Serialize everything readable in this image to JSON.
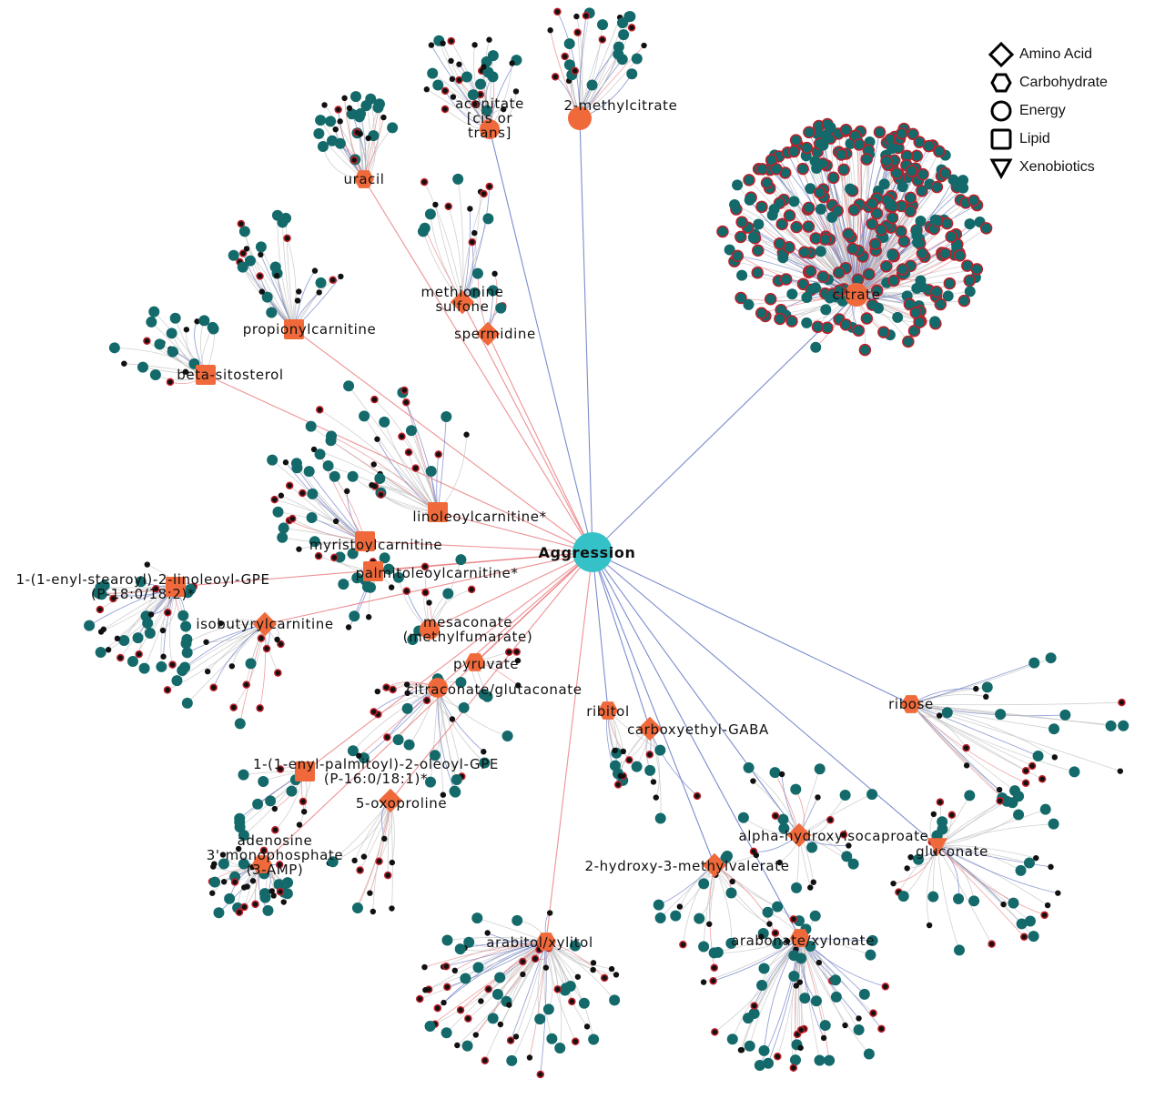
{
  "colors": {
    "hub": "#f0693a",
    "center": "#35c1c8",
    "member": "#14696a",
    "member_outline": "#c0202a",
    "minor": "#111111",
    "edge_positive": "#e8777a",
    "edge_negative": "#5b6fc1",
    "edge_neutral": "#bdbdbd"
  },
  "legend": [
    {
      "shape": "diamond",
      "label": "Amino Acid"
    },
    {
      "shape": "hexagon",
      "label": "Carbohydrate"
    },
    {
      "shape": "circle",
      "label": "Energy"
    },
    {
      "shape": "square",
      "label": "Lipid"
    },
    {
      "shape": "triangle",
      "label": "Xenobiotics"
    }
  ],
  "center": {
    "label": "Aggression"
  },
  "hubs": [
    {
      "lines": [
        "2-methylcitrate"
      ],
      "type": "Energy",
      "edge": "negative"
    },
    {
      "lines": [
        "aconitate",
        "[cis or",
        "trans]"
      ],
      "type": "Energy",
      "edge": "negative"
    },
    {
      "lines": [
        "uracil"
      ],
      "type": "Carbohydrate",
      "edge": "positive"
    },
    {
      "lines": [
        "citrate"
      ],
      "type": "Energy",
      "edge": "negative"
    },
    {
      "lines": [
        "methionine",
        "sulfone"
      ],
      "type": "Amino Acid",
      "edge": "positive"
    },
    {
      "lines": [
        "spermidine"
      ],
      "type": "Amino Acid",
      "edge": "positive"
    },
    {
      "lines": [
        "propionylcarnitine"
      ],
      "type": "Lipid",
      "edge": "positive"
    },
    {
      "lines": [
        "beta-sitosterol"
      ],
      "type": "Lipid",
      "edge": "positive"
    },
    {
      "lines": [
        "linoleoylcarnitine*"
      ],
      "type": "Lipid",
      "edge": "positive"
    },
    {
      "lines": [
        "myristoylcarnitine"
      ],
      "type": "Lipid",
      "edge": "positive"
    },
    {
      "lines": [
        "palmitoleoylcarnitine*"
      ],
      "type": "Lipid",
      "edge": "positive"
    },
    {
      "lines": [
        "1-(1-enyl-stearoyl)-2-linoleoyl-GPE",
        "(P-18:0/18:2)*"
      ],
      "type": "Lipid",
      "edge": "positive"
    },
    {
      "lines": [
        "isobutyrylcarnitine"
      ],
      "type": "Amino Acid",
      "edge": "positive"
    },
    {
      "lines": [
        "mesaconate",
        "(methylfumarate)"
      ],
      "type": "Energy",
      "edge": "positive"
    },
    {
      "lines": [
        "pyruvate"
      ],
      "type": "Carbohydrate",
      "edge": "positive"
    },
    {
      "lines": [
        "citraconate/glutaconate"
      ],
      "type": "Energy",
      "edge": "positive"
    },
    {
      "lines": [
        "1-(1-enyl-palmitoyl)-2-oleoyl-GPE",
        "(P-16:0/18:1)*"
      ],
      "type": "Lipid",
      "edge": "positive"
    },
    {
      "lines": [
        "5-oxoproline"
      ],
      "type": "Amino Acid",
      "edge": "positive"
    },
    {
      "lines": [
        "adenosine",
        "3'-monophosphate",
        "(3-AMP)"
      ],
      "type": "Carbohydrate",
      "edge": "positive"
    },
    {
      "lines": [
        "arabitol/xylitol"
      ],
      "type": "Carbohydrate",
      "edge": "positive"
    },
    {
      "lines": [
        "ribitol"
      ],
      "type": "Carbohydrate",
      "edge": "negative"
    },
    {
      "lines": [
        "carboxyethyl-GABA"
      ],
      "type": "Amino Acid",
      "edge": "negative"
    },
    {
      "lines": [
        "ribose"
      ],
      "type": "Carbohydrate",
      "edge": "negative"
    },
    {
      "lines": [
        "alpha-hydroxyisocaproate"
      ],
      "type": "Amino Acid",
      "edge": "negative"
    },
    {
      "lines": [
        "2-hydroxy-3-methylvalerate"
      ],
      "type": "Amino Acid",
      "edge": "negative"
    },
    {
      "lines": [
        "gluconate"
      ],
      "type": "Xenobiotics",
      "edge": "negative"
    },
    {
      "lines": [
        "arabonate/xylonate"
      ],
      "type": "Carbohydrate",
      "edge": "negative"
    }
  ]
}
